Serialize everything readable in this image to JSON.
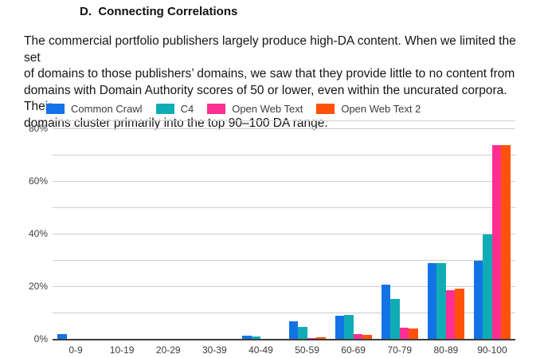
{
  "section": {
    "heading": "D.  Connecting Correlations",
    "paragraph": "The commercial portfolio publishers largely produce high-DA content. When we limited the set\nof domains to those publishers’ domains, we saw that they provide little to no content from\ndomains with Domain Authority scores of 50 or lower, even within the uncurated corpora. Their\ndomains cluster primarily into the top 90–100 DA range."
  },
  "chart_data": {
    "type": "bar",
    "title": "",
    "xlabel": "",
    "ylabel": "",
    "categories": [
      "0-9",
      "10-19",
      "20-29",
      "30-39",
      "40-49",
      "50-59",
      "60-69",
      "70-79",
      "80-89",
      "90-100"
    ],
    "series": [
      {
        "name": "Common Crawl",
        "color": "#1273e6",
        "values": [
          2.0,
          0.1,
          0.1,
          0.3,
          1.6,
          7.0,
          9.2,
          21.0,
          29.0,
          30.0
        ]
      },
      {
        "name": "C4",
        "color": "#10acb5",
        "values": [
          0.1,
          0.1,
          0.1,
          0.3,
          1.1,
          5.0,
          9.3,
          15.5,
          29.0,
          40.0
        ]
      },
      {
        "name": "Open Web Text",
        "color": "#ff2e93",
        "values": [
          0.2,
          0.2,
          0.1,
          0.1,
          0.2,
          0.7,
          2.1,
          4.6,
          18.8,
          74.0
        ]
      },
      {
        "name": "Open Web Text 2",
        "color": "#ff5208",
        "values": [
          0.2,
          0.2,
          0.1,
          0.1,
          0.2,
          0.9,
          1.9,
          4.3,
          19.4,
          74.0
        ]
      }
    ],
    "y_ticks": [
      {
        "value": 0,
        "label": "0%"
      },
      {
        "value": 20,
        "label": "20%"
      },
      {
        "value": 40,
        "label": "40%"
      },
      {
        "value": 60,
        "label": "60%"
      },
      {
        "value": 80,
        "label": "80%"
      }
    ],
    "gridline_values": [
      0,
      10,
      20,
      30,
      40,
      50,
      60,
      70,
      80
    ],
    "ylim": [
      0,
      83
    ],
    "grid": true,
    "legend_position": "top",
    "colors": {
      "gridline": "#cccccc",
      "axis_line": "#3d3d3d",
      "tick_text": "#404040"
    }
  }
}
